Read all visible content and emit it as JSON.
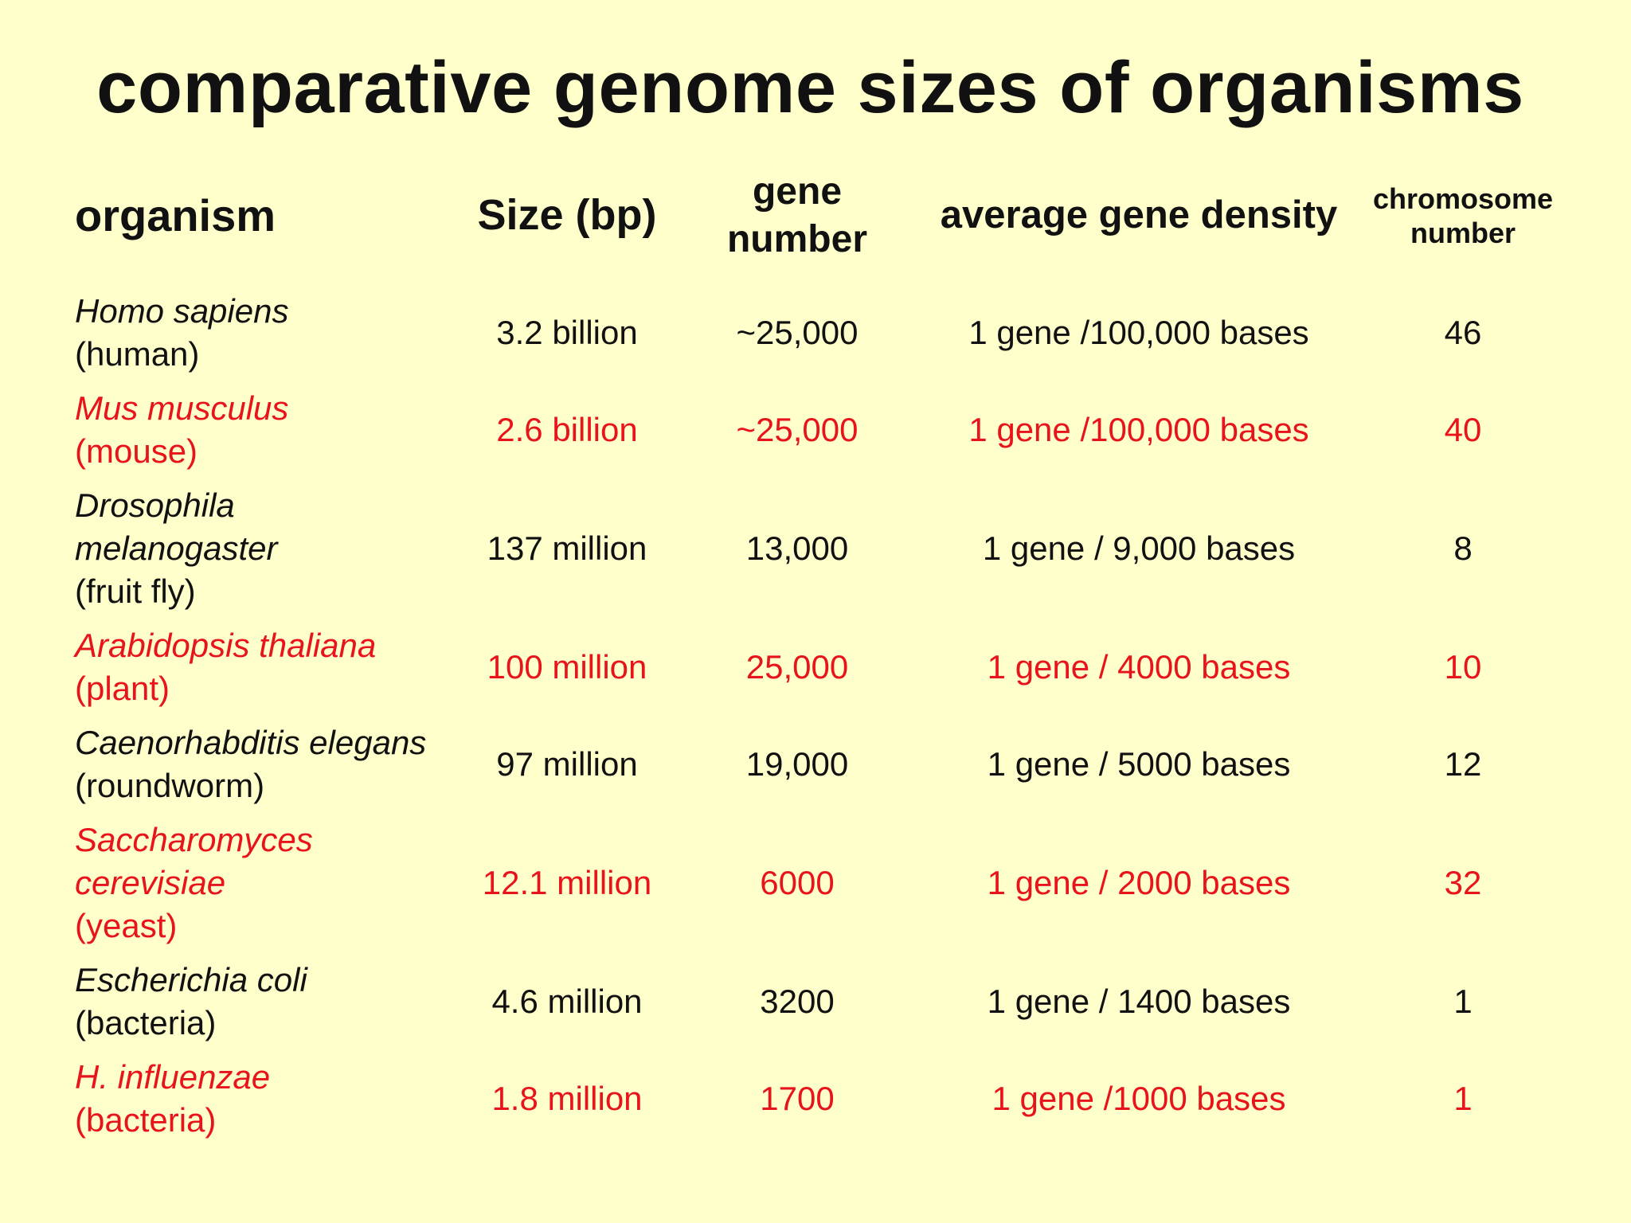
{
  "title": "comparative genome sizes of organisms",
  "columns": {
    "organism": "organism",
    "size": "Size (bp)",
    "gene_number": [
      "gene",
      "number"
    ],
    "density": "average gene density",
    "chromosome": [
      "chromosome",
      "number"
    ]
  },
  "rows": [
    {
      "sci": [
        "Homo sapiens"
      ],
      "common": "(human)",
      "size": "3.2 billion",
      "genes": "~25,000",
      "density": "1 gene /100,000 bases",
      "chromosomes": "46",
      "color": "#111111"
    },
    {
      "sci": [
        "Mus musculus"
      ],
      "common": "(mouse)",
      "size": "2.6 billion",
      "genes": "~25,000",
      "density": "1 gene /100,000 bases",
      "chromosomes": "40",
      "color": "#e8141c"
    },
    {
      "sci": [
        "Drosophila",
        "melanogaster"
      ],
      "common": "(fruit fly)",
      "size": "137 million",
      "genes": "13,000",
      "density": "1 gene / 9,000 bases",
      "chromosomes": "8",
      "color": "#111111"
    },
    {
      "sci": [
        "Arabidopsis thaliana"
      ],
      "common": "(plant)",
      "size": "100 million",
      "genes": "25,000",
      "density": "1 gene / 4000 bases",
      "chromosomes": "10",
      "color": "#e8141c"
    },
    {
      "sci": [
        "Caenorhabditis elegans"
      ],
      "common": "(roundworm)",
      "size": "97 million",
      "genes": "19,000",
      "density": "1 gene / 5000 bases",
      "chromosomes": "12",
      "color": "#111111"
    },
    {
      "sci": [
        "Saccharomyces",
        "cerevisiae"
      ],
      "common": "(yeast)",
      "size": "12.1 million",
      "genes": "6000",
      "density": "1 gene / 2000 bases",
      "chromosomes": "32",
      "color": "#e8141c"
    },
    {
      "sci": [
        "Escherichia coli"
      ],
      "common": "(bacteria)",
      "size": "4.6 million",
      "genes": "3200",
      "density": "1 gene / 1400 bases",
      "chromosomes": "1",
      "color": "#111111"
    },
    {
      "sci": [
        "H. influenzae"
      ],
      "common": "(bacteria)",
      "size": "1.8 million",
      "genes": "1700",
      "density": "1 gene /1000 bases",
      "chromosomes": "1",
      "color": "#e8141c"
    }
  ]
}
